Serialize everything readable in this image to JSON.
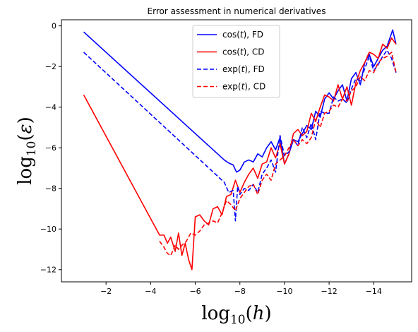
{
  "chart_data": {
    "type": "line",
    "title": "Error assessment in numerical derivatives",
    "xlabel": "log₁₀(h)",
    "ylabel": "log₁₀(ε)",
    "xlim": [
      0,
      -15.7
    ],
    "ylim": [
      -12.6,
      0.3
    ],
    "x_inverted": true,
    "xticks": [
      -2,
      -4,
      -6,
      -8,
      -10,
      -12,
      -14
    ],
    "yticks": [
      0,
      -2,
      -4,
      -6,
      -8,
      -10,
      -12
    ],
    "xtick_labels": [
      "−2",
      "−4",
      "−6",
      "−8",
      "−10",
      "−12",
      "−14"
    ],
    "ytick_labels": [
      "0",
      "−2",
      "−4",
      "−6",
      "−8",
      "−10",
      "−12"
    ],
    "legend_position": "upper center",
    "grid": false,
    "series": [
      {
        "name": "cos(t), FD",
        "color": "#0000ff",
        "dash": "solid",
        "x": [
          -1,
          -7.3,
          -7.5,
          -7.7,
          -7.85,
          -8.0,
          -8.2,
          -8.4,
          -8.6,
          -8.8,
          -9.0,
          -9.2,
          -9.4,
          -9.6,
          -9.8,
          -10.0,
          -10.2,
          -10.4,
          -10.6,
          -10.8,
          -11.0,
          -11.2,
          -11.4,
          -11.6,
          -11.8,
          -12.0,
          -12.2,
          -12.4,
          -12.6,
          -12.8,
          -13.0,
          -13.2,
          -13.4,
          -13.6,
          -13.8,
          -14.0,
          -14.2,
          -14.4,
          -14.6,
          -14.85,
          -15.0
        ],
        "y": [
          -0.3,
          -6.6,
          -6.75,
          -6.85,
          -7.2,
          -7.1,
          -6.7,
          -6.6,
          -6.7,
          -6.3,
          -6.45,
          -6.0,
          -5.7,
          -6.1,
          -5.5,
          -6.8,
          -6.3,
          -5.6,
          -5.7,
          -5.3,
          -4.9,
          -5.1,
          -4.2,
          -4.5,
          -3.6,
          -3.3,
          -3.6,
          -3.2,
          -2.9,
          -3.7,
          -2.6,
          -2.3,
          -2.9,
          -1.8,
          -1.4,
          -2.0,
          -1.6,
          -1.2,
          -1.0,
          -0.2,
          -0.9
        ]
      },
      {
        "name": "cos(t), CD",
        "color": "#ff0000",
        "dash": "solid",
        "x": [
          -1,
          -4.4,
          -4.6,
          -4.75,
          -4.9,
          -5.1,
          -5.25,
          -5.4,
          -5.55,
          -5.7,
          -5.85,
          -6.0,
          -6.2,
          -6.4,
          -6.6,
          -6.8,
          -7.0,
          -7.2,
          -7.4,
          -7.6,
          -7.8,
          -8.0,
          -8.2,
          -8.4,
          -8.6,
          -8.8,
          -9.0,
          -9.2,
          -9.4,
          -9.6,
          -9.8,
          -10.0,
          -10.2,
          -10.4,
          -10.6,
          -10.8,
          -11.0,
          -11.2,
          -11.4,
          -11.6,
          -11.8,
          -12.0,
          -12.2,
          -12.4,
          -12.6,
          -12.8,
          -13.0,
          -13.2,
          -13.4,
          -13.6,
          -13.8,
          -14.0,
          -14.2,
          -14.4,
          -14.6,
          -14.8,
          -15.0
        ],
        "y": [
          -3.4,
          -10.3,
          -10.3,
          -10.7,
          -10.4,
          -11.1,
          -10.2,
          -11.3,
          -10.7,
          -11.5,
          -12.0,
          -9.4,
          -9.3,
          -9.6,
          -9.8,
          -9.0,
          -8.9,
          -9.3,
          -8.4,
          -8.3,
          -7.6,
          -8.2,
          -7.7,
          -7.3,
          -7.0,
          -7.5,
          -6.8,
          -6.7,
          -6.0,
          -6.5,
          -5.8,
          -6.8,
          -6.3,
          -5.3,
          -5.1,
          -5.4,
          -5.2,
          -4.3,
          -4.7,
          -4.0,
          -3.4,
          -3.5,
          -3.7,
          -2.9,
          -3.6,
          -3.0,
          -3.9,
          -2.8,
          -2.2,
          -1.8,
          -1.3,
          -1.4,
          -1.6,
          -0.9,
          -1.1,
          -0.6,
          -0.9
        ]
      },
      {
        "name": "exp(t), FD",
        "color": "#0000ff",
        "dash": "dashed",
        "x": [
          -1,
          -7.3,
          -7.5,
          -7.7,
          -7.8,
          -7.9,
          -8.0,
          -8.2,
          -8.4,
          -8.6,
          -8.8,
          -9.0,
          -9.2,
          -9.4,
          -9.6,
          -9.8,
          -10.0,
          -10.2,
          -10.4,
          -10.6,
          -10.8,
          -11.0,
          -11.2,
          -11.4,
          -11.6,
          -11.8,
          -12.0,
          -12.2,
          -12.4,
          -12.6,
          -12.8,
          -13.0,
          -13.2,
          -13.4,
          -13.6,
          -13.8,
          -14.0,
          -14.2,
          -14.4,
          -14.6,
          -14.8,
          -15.0
        ],
        "y": [
          -1.3,
          -7.7,
          -8.2,
          -8.1,
          -9.6,
          -7.9,
          -8.3,
          -8.0,
          -8.1,
          -7.8,
          -8.2,
          -7.3,
          -7.0,
          -6.6,
          -7.2,
          -5.4,
          -6.4,
          -6.2,
          -5.6,
          -5.9,
          -5.0,
          -5.5,
          -4.8,
          -5.6,
          -4.2,
          -4.3,
          -4.3,
          -3.5,
          -3.7,
          -3.6,
          -3.8,
          -3.1,
          -2.6,
          -2.7,
          -2.1,
          -1.5,
          -2.2,
          -1.9,
          -1.5,
          -1.2,
          -1.6,
          -2.3
        ]
      },
      {
        "name": "exp(t), CD",
        "color": "#ff0000",
        "dash": "dashed",
        "x": [
          -4.4,
          -4.6,
          -4.75,
          -4.9,
          -5.1,
          -5.25,
          -5.4,
          -5.6,
          -5.8,
          -6.0,
          -6.2,
          -6.4,
          -6.6,
          -6.8,
          -7.0,
          -7.2,
          -7.4,
          -7.6,
          -7.8,
          -8.0,
          -8.2,
          -8.4,
          -8.6,
          -8.8,
          -9.0,
          -9.2,
          -9.4,
          -9.6,
          -9.8,
          -10.0,
          -10.2,
          -10.4,
          -10.6,
          -10.8,
          -11.0,
          -11.2,
          -11.4,
          -11.6,
          -11.8,
          -12.0,
          -12.2,
          -12.4,
          -12.6,
          -12.8,
          -13.0,
          -13.2,
          -13.4,
          -13.6,
          -13.8,
          -14.0,
          -14.2,
          -14.4,
          -14.6,
          -14.8,
          -15.0
        ],
        "y": [
          -10.6,
          -10.9,
          -11.2,
          -11.3,
          -10.8,
          -11.0,
          -10.8,
          -10.6,
          -10.2,
          -10.3,
          -10.1,
          -9.8,
          -9.7,
          -9.6,
          -9.7,
          -9.2,
          -8.6,
          -8.8,
          -9.1,
          -8.5,
          -8.2,
          -7.9,
          -7.8,
          -8.3,
          -7.6,
          -7.3,
          -7.6,
          -6.8,
          -6.6,
          -6.4,
          -6.0,
          -5.6,
          -5.9,
          -5.6,
          -5.8,
          -5.5,
          -4.6,
          -5.0,
          -4.3,
          -4.2,
          -3.9,
          -4.0,
          -3.6,
          -3.7,
          -3.2,
          -3.0,
          -2.5,
          -2.7,
          -2.2,
          -2.3,
          -1.8,
          -1.6,
          -1.5,
          -1.3,
          -2.3
        ]
      }
    ]
  }
}
